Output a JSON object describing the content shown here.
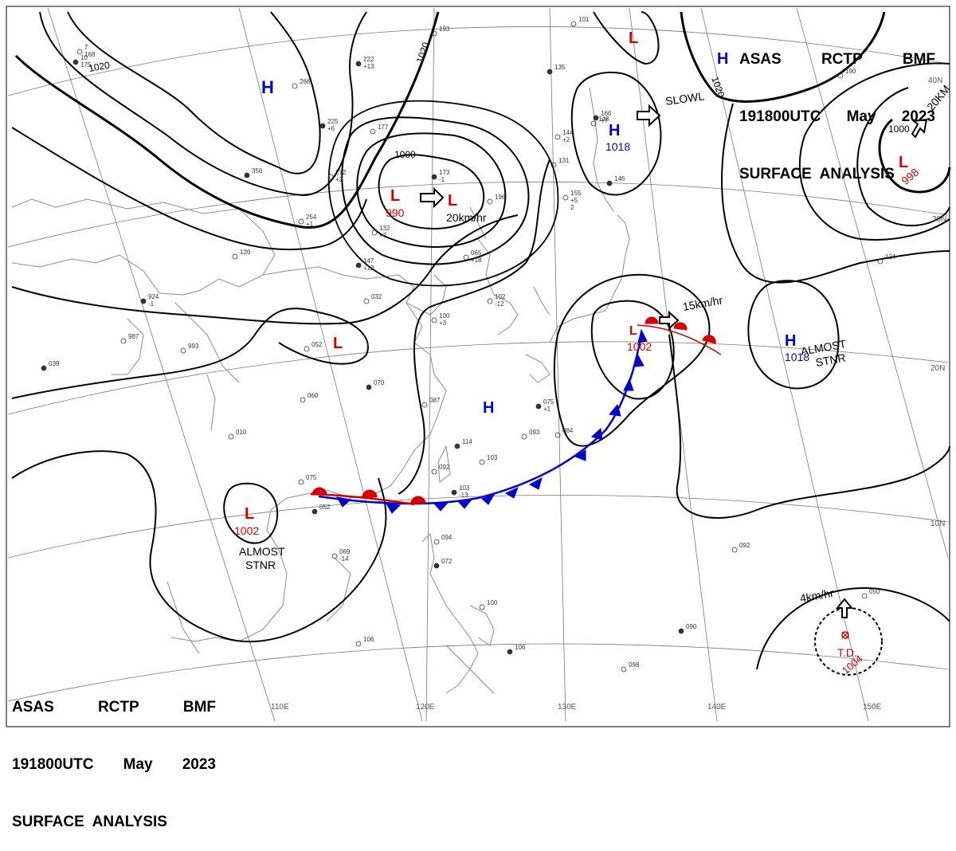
{
  "header_top": {
    "line1": [
      "ASAS",
      "RCTP",
      "BMF"
    ],
    "line2": [
      "191800UTC",
      "May",
      "2023"
    ],
    "line3": "SURFACE  ANALYSIS"
  },
  "header_bottom": {
    "line1": [
      "ASAS",
      "RCTP",
      "BMF"
    ],
    "line2": [
      "191800UTC",
      "May",
      "2023"
    ],
    "line3": "SURFACE  ANALYSIS"
  },
  "lon_labels": [
    "110E",
    "120E",
    "130E",
    "140E",
    "150E"
  ],
  "lat_labels": [
    "40N",
    "30N",
    "20N",
    "10N"
  ],
  "centers": [
    {
      "type": "H",
      "pressure": ""
    },
    {
      "type": "L",
      "pressure": "990"
    },
    {
      "type": "L",
      "pressure": ""
    },
    {
      "type": "L",
      "pressure": ""
    },
    {
      "type": "H",
      "pressure": "1018"
    },
    {
      "type": "H",
      "pressure": ""
    },
    {
      "type": "L",
      "pressure": "998"
    },
    {
      "type": "L",
      "pressure": ""
    },
    {
      "type": "L",
      "pressure": "1002"
    },
    {
      "type": "H",
      "pressure": ""
    },
    {
      "type": "H",
      "pressure": "1018"
    },
    {
      "type": "L",
      "pressure": "1002"
    }
  ],
  "isobar_labels": [
    "1020",
    "1020",
    "1000",
    "1020",
    "1000"
  ],
  "movements": [
    "20km/hr",
    "SLOWL",
    "15km/hr",
    "4km/hr",
    "20KM"
  ],
  "annotations": [
    "ALMOST\nSTNR",
    "ALMOST\nSTNR"
  ],
  "td": {
    "label": "T.D.",
    "pressure": "1004",
    "color": "#d40000"
  },
  "colors": {
    "high": "#0000cc",
    "low": "#d40000",
    "isobar": "#000000",
    "coast": "#888888",
    "warm_front": "#d40000",
    "cold_front": "#0000cc"
  },
  "station_plots": [
    "10 175",
    "7 168",
    "266",
    "222 +13",
    "193",
    "101",
    "135",
    "190",
    "148",
    "356",
    "254 +1",
    "272 +2",
    "225 +6",
    "177",
    "126",
    "147 +12",
    "132 +7",
    "144 +2",
    "166 +7",
    "155 +5 2",
    "131",
    "146",
    "196",
    "065 +18",
    "173 -1",
    "102 -12",
    "100 +3",
    "924 -1",
    "987",
    "993",
    "039",
    "052",
    "032",
    "070",
    "060",
    "087",
    "075 +1",
    "093",
    "084",
    "114",
    "103",
    "092",
    "103 -13",
    "010",
    "075",
    "052",
    "069 -14",
    "094",
    "072",
    "100",
    "106",
    "106",
    "098",
    "092",
    "090",
    "050",
    "124"
  ]
}
